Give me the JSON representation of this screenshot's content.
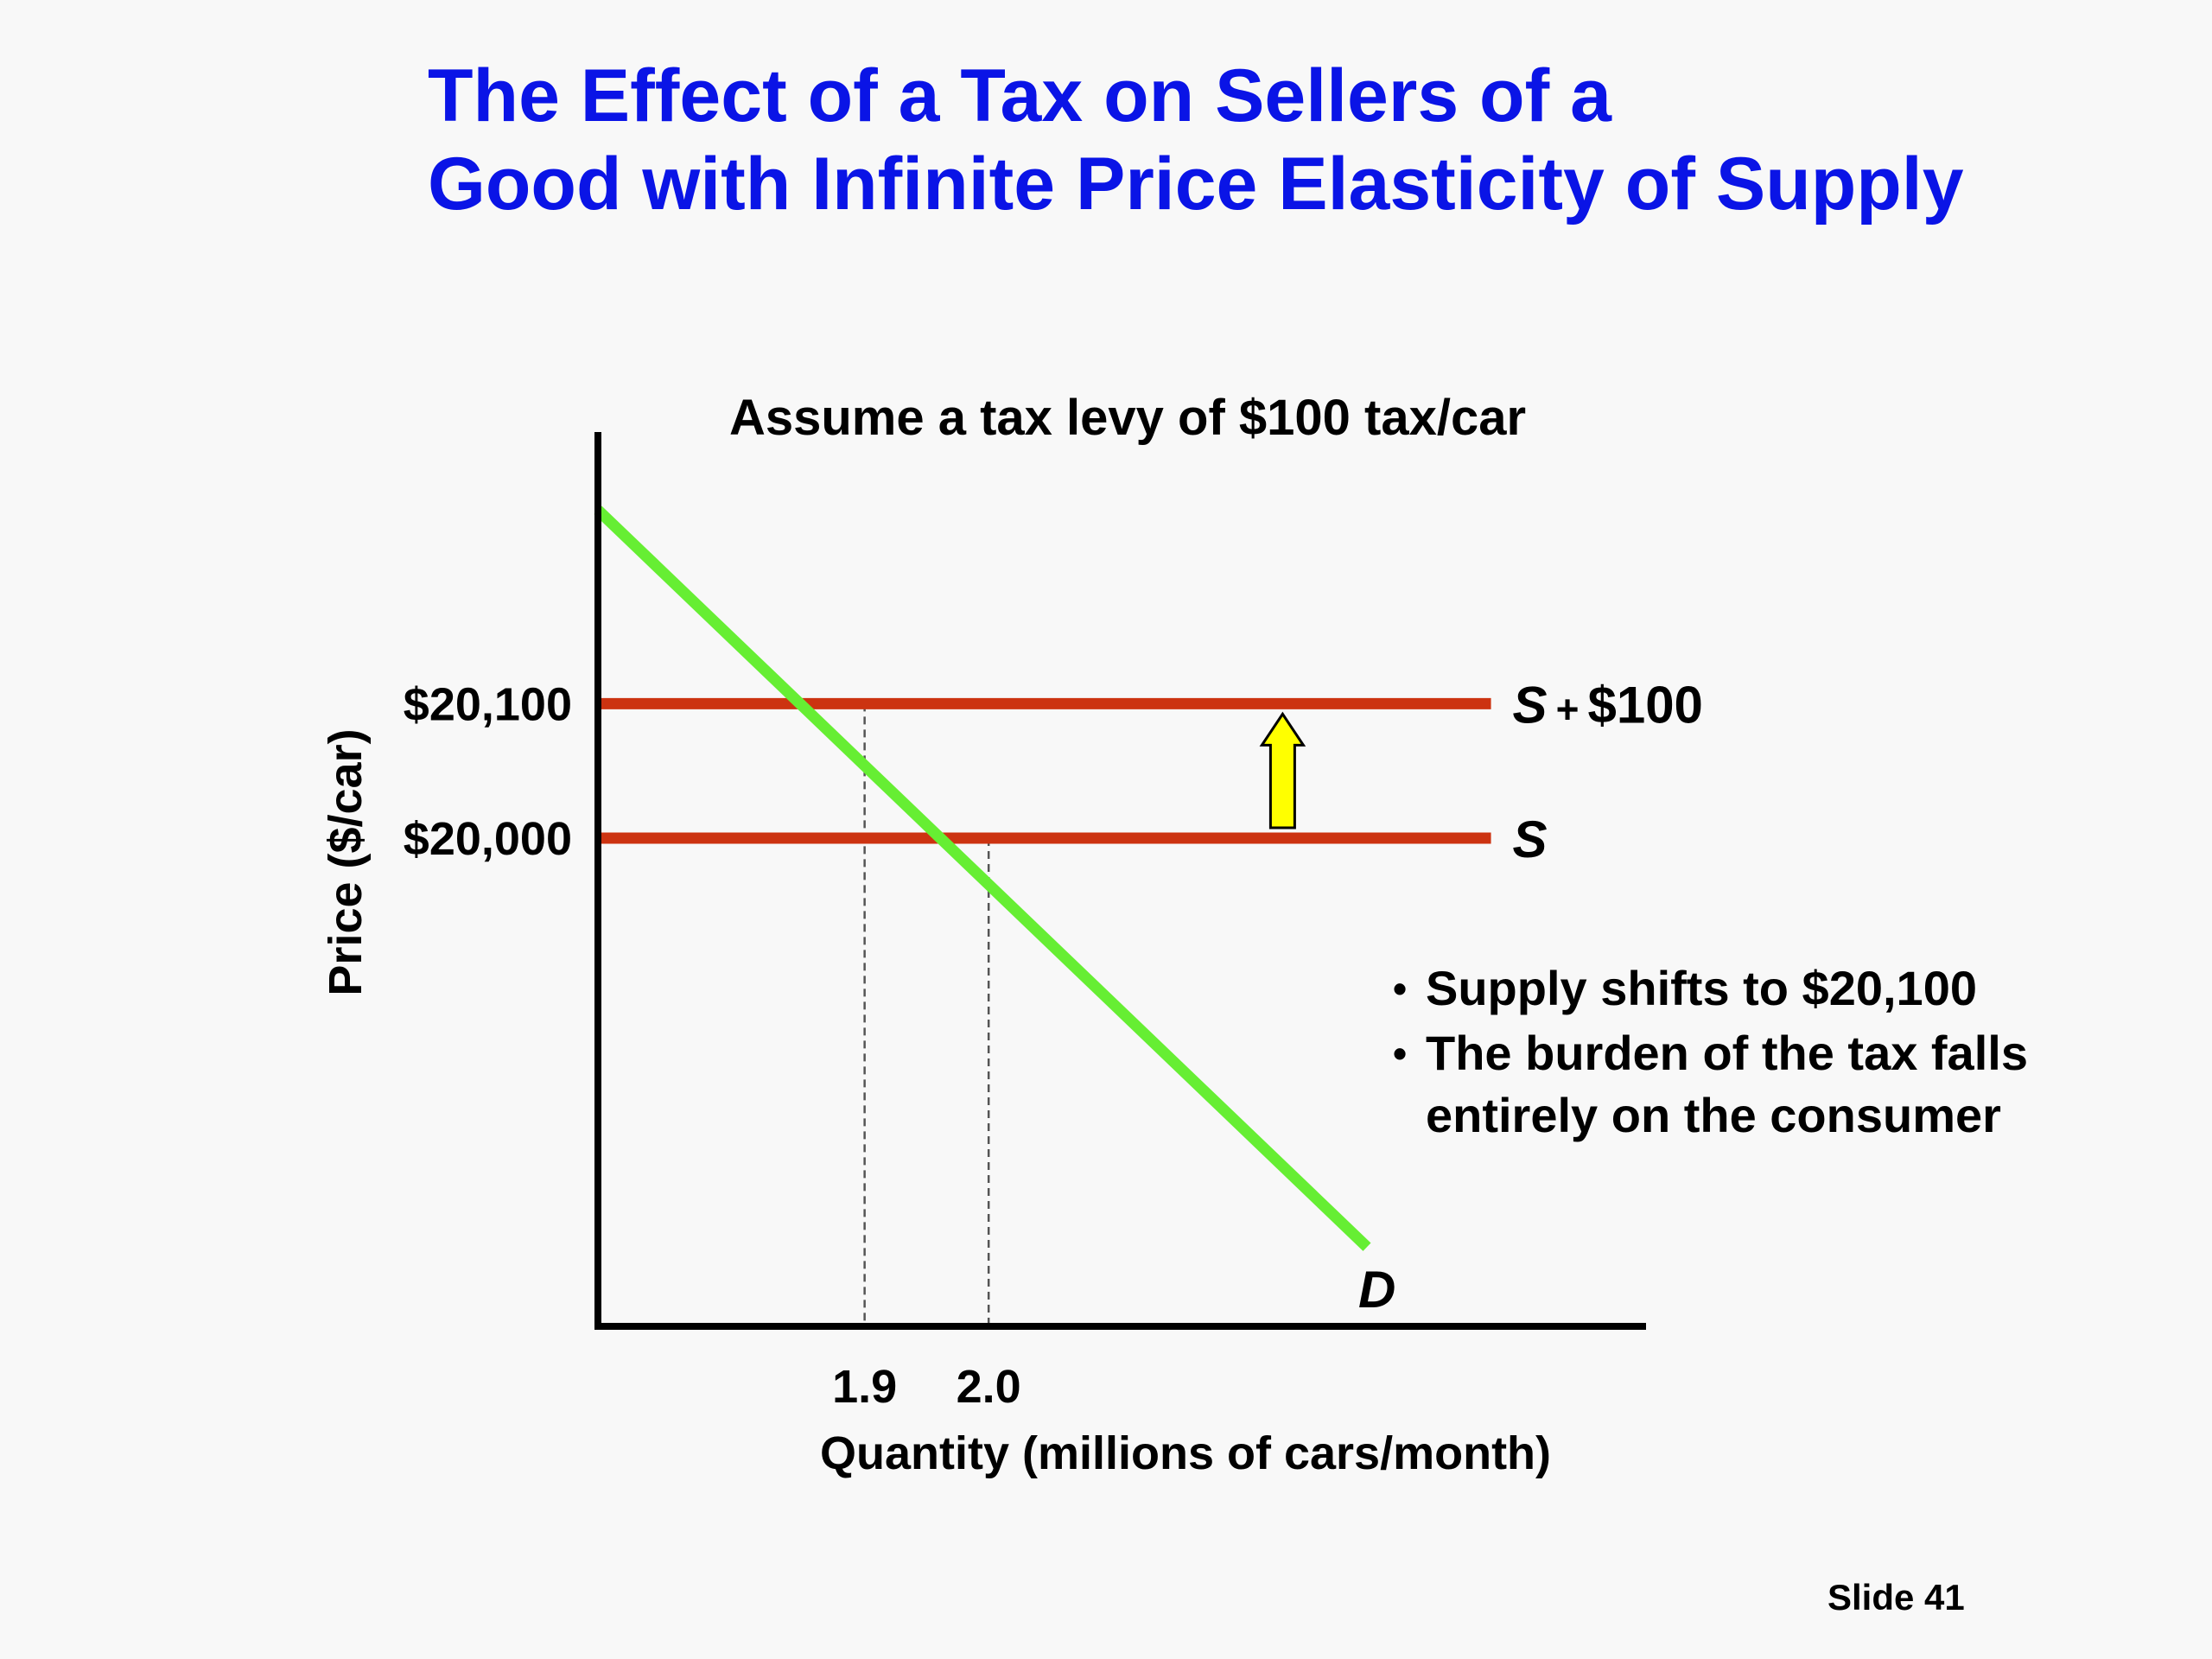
{
  "slide": {
    "title_lines": [
      "The Effect of a Tax on Sellers of a",
      "Good with Infinite Price Elasticity of Supply"
    ],
    "notes": [
      "Supply shifts to $20,100",
      "The burden of the tax falls entirely on the consumer"
    ],
    "slide_number": "Slide 41"
  },
  "colors": {
    "title": "#0a14e6",
    "demand": "#66ee33",
    "supply": "#cc3311",
    "arrow_fill": "#ffff00",
    "axis": "#000000"
  },
  "chart_data": {
    "type": "line",
    "title": "Assume a tax levy of $100 tax/car",
    "xlabel": "Quantity (millions of cars/month)",
    "ylabel": "Price ($/car)",
    "x_ticks": [
      {
        "value": 1.9,
        "label": "1.9"
      },
      {
        "value": 2.0,
        "label": "2.0"
      }
    ],
    "y_ticks": [
      {
        "value": 20000,
        "label": "$20,000"
      },
      {
        "value": 20100,
        "label": "$20,100"
      }
    ],
    "xlim": [
      1.685,
      2.53
    ],
    "ylim": [
      19637,
      20302
    ],
    "series": [
      {
        "name": "D",
        "role": "demand",
        "color": "#66ee33",
        "points": [
          [
            1.685,
            20244
          ],
          [
            2.305,
            19696
          ]
        ]
      },
      {
        "name": "S",
        "role": "supply",
        "color": "#cc3311",
        "points": [
          [
            1.685,
            20000
          ],
          [
            2.405,
            20000
          ]
        ]
      },
      {
        "name": "S + $100",
        "role": "supply-with-tax",
        "color": "#cc3311",
        "points": [
          [
            1.685,
            20100
          ],
          [
            2.405,
            20100
          ]
        ]
      }
    ],
    "equilibria": [
      {
        "x": 2.0,
        "y": 20000
      },
      {
        "x": 1.9,
        "y": 20100
      }
    ],
    "shift_arrow": {
      "x": 2.237,
      "from": 20000,
      "to": 20100
    },
    "grid": false,
    "legend": "none"
  }
}
